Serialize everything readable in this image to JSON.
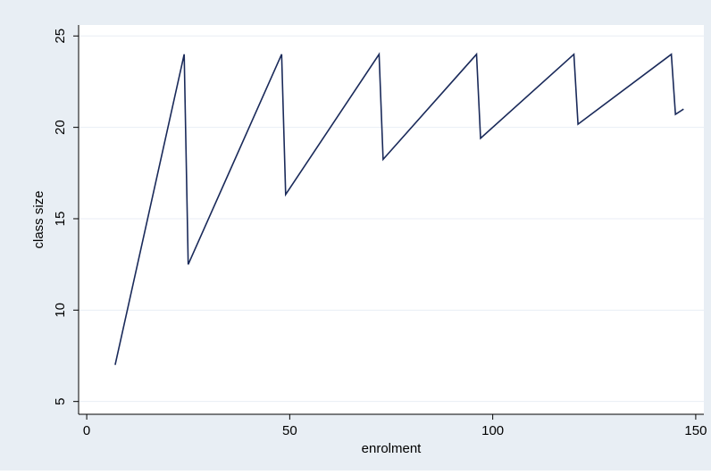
{
  "chart_data": {
    "type": "line",
    "title": "",
    "xlabel": "enrolment",
    "ylabel": "class size",
    "xlim": [
      -2,
      152
    ],
    "ylim": [
      4.3,
      25.6
    ],
    "xticks": [
      0,
      50,
      100,
      150
    ],
    "yticks": [
      5,
      10,
      15,
      20,
      25
    ],
    "grid": true,
    "legend": "none",
    "colors": {
      "outer_background": "#E8EEF4",
      "plot_background": "#FFFFFF",
      "line": "#1A2A5A",
      "gridline": "#E8EEF4",
      "axis": "#000000"
    },
    "series": [
      {
        "x": [
          7,
          24,
          25,
          48,
          49,
          72,
          73,
          96,
          97,
          120,
          121,
          144,
          145,
          147
        ],
        "y": [
          7,
          24,
          12.5,
          24,
          16.33,
          24,
          18.25,
          24,
          19.4,
          24,
          20.17,
          24,
          20.71,
          21
        ]
      }
    ]
  }
}
